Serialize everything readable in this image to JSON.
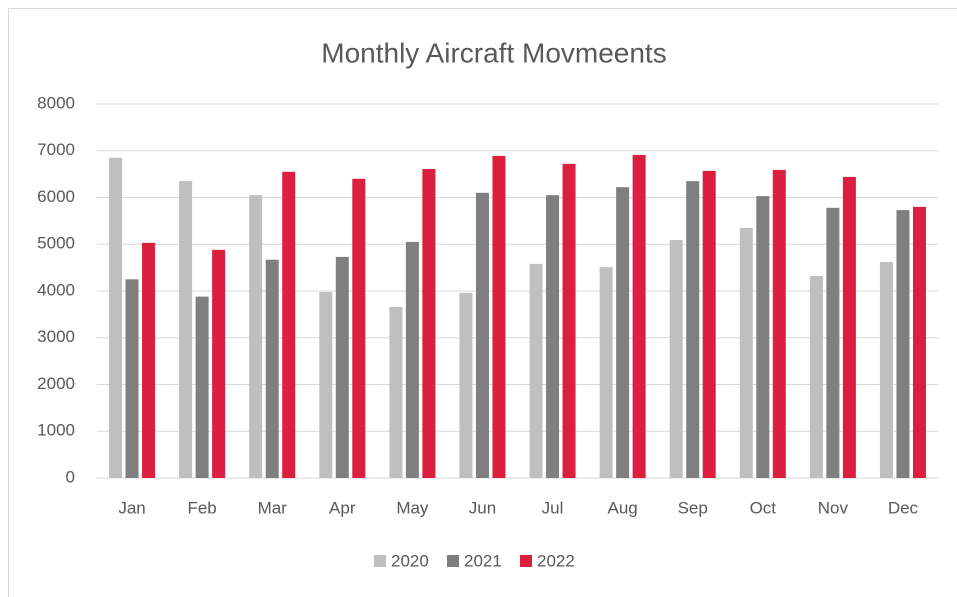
{
  "chart_data": {
    "type": "bar",
    "title": "Monthly Aircraft Movmeents",
    "categories": [
      "Jan",
      "Feb",
      "Mar",
      "Apr",
      "May",
      "Jun",
      "Jul",
      "Aug",
      "Sep",
      "Oct",
      "Nov",
      "Dec"
    ],
    "series": [
      {
        "name": "2020",
        "color": "#bfbfbf",
        "values": [
          6850,
          6350,
          6050,
          3980,
          3660,
          3960,
          4580,
          4510,
          5090,
          5350,
          4320,
          4620
        ]
      },
      {
        "name": "2021",
        "color": "#7f7f7f",
        "values": [
          4250,
          3880,
          4670,
          4730,
          5050,
          6100,
          6050,
          6220,
          6350,
          6030,
          5780,
          5730
        ]
      },
      {
        "name": "2022",
        "color": "#dc1f3e",
        "values": [
          5030,
          4880,
          6550,
          6400,
          6610,
          6890,
          6720,
          6910,
          6570,
          6590,
          6440,
          5800
        ]
      }
    ],
    "ylim": [
      0,
      8000
    ],
    "yticks": [
      0,
      1000,
      2000,
      3000,
      4000,
      5000,
      6000,
      7000,
      8000
    ],
    "grid": true,
    "legend": "bottom"
  }
}
